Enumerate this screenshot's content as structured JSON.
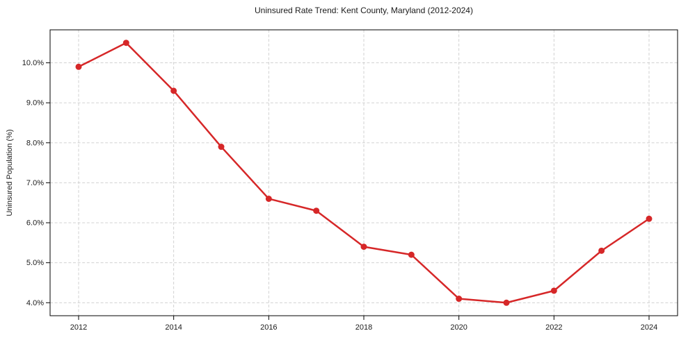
{
  "chart_data": {
    "type": "line",
    "title": "Uninsured Rate Trend: Kent County, Maryland (2012-2024)",
    "xlabel": "",
    "ylabel": "Uninsured Population (%)",
    "x": [
      2012,
      2013,
      2014,
      2015,
      2016,
      2017,
      2018,
      2019,
      2020,
      2021,
      2022,
      2023,
      2024
    ],
    "series": [
      {
        "name": "Uninsured rate",
        "values": [
          9.9,
          10.5,
          9.3,
          7.9,
          6.6,
          6.3,
          5.4,
          5.2,
          4.1,
          4.0,
          4.3,
          5.3,
          6.1
        ],
        "color": "#d62728",
        "marker": "circle",
        "line_width": 2.5,
        "marker_radius": 4.5
      }
    ],
    "x_ticks": [
      2012,
      2014,
      2016,
      2018,
      2020,
      2022,
      2024
    ],
    "y_ticks": [
      4.0,
      5.0,
      6.0,
      7.0,
      8.0,
      9.0,
      10.0
    ],
    "y_tick_labels": [
      "4.0%",
      "5.0%",
      "6.0%",
      "7.0%",
      "8.0%",
      "9.0%",
      "10.0%"
    ],
    "xlim": [
      2011.4,
      2024.6
    ],
    "ylim": [
      3.675,
      10.825
    ],
    "grid": true,
    "grid_color": "#cccccc",
    "axis_color": "#000000",
    "text_color": "#1a1a1a",
    "background": "#ffffff",
    "legend_position": "none"
  }
}
